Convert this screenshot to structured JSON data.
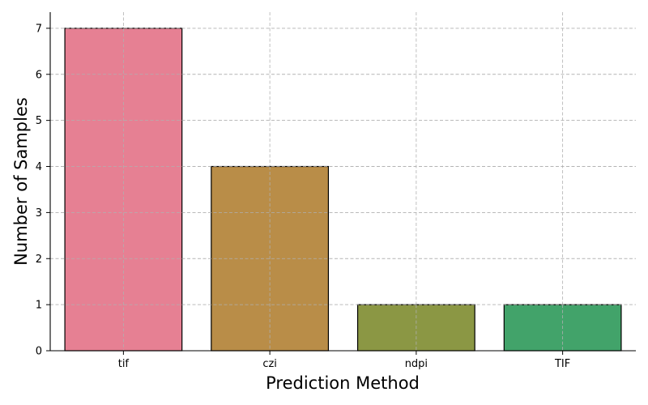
{
  "chart_data": {
    "type": "bar",
    "categories": [
      "tif",
      "czi",
      "ndpi",
      "TIF"
    ],
    "values": [
      7,
      4,
      1,
      1
    ],
    "colors": [
      "#e68093",
      "#b98d48",
      "#8b9744",
      "#42a36a"
    ],
    "title": "",
    "xlabel": "Prediction Method",
    "ylabel": "Number of Samples",
    "ylim": [
      0,
      7.35
    ],
    "yticks": [
      0,
      1,
      2,
      3,
      4,
      5,
      6,
      7
    ],
    "grid": true
  }
}
